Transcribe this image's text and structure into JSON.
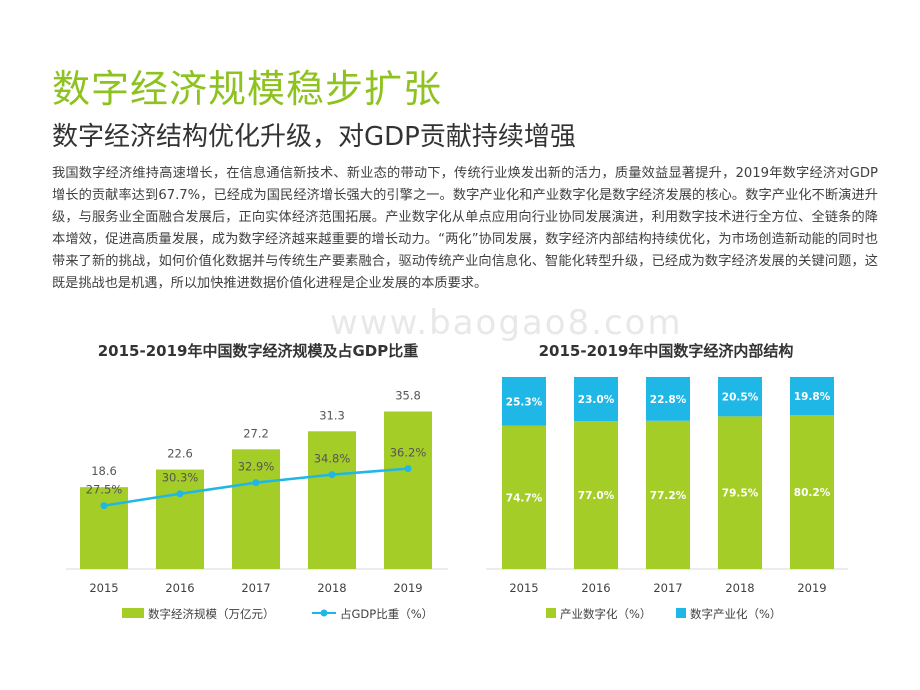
{
  "header": {
    "title": "数字经济规模稳步扩张",
    "subtitle": "数字经济结构优化升级，对GDP贡献持续增强"
  },
  "body_text": "我国数字经济维持高速增长，在信息通信新技术、新业态的带动下，传统行业焕发出新的活力，质量效益显著提升，2019年数字经济对GDP增长的贡献率达到67.7%，已经成为国民经济增长强大的引擎之一。数字产业化和产业数字化是数字经济发展的核心。数字产业化不断演进升级，与服务业全面融合发展后，正向实体经济范围拓展。产业数字化从单点应用向行业协同发展演进，利用数字技术进行全方位、全链条的降本增效，促进高质量发展，成为数字经济越来越重要的增长动力。“两化”协同发展，数字经济内部结构持续优化，为市场创造新动能的同时也带来了新的挑战，如何价值化数据并与传统生产要素融合，驱动传统产业向信息化、智能化转型升级，已经成为数字经济发展的关键问题，这既是挑战也是机遇，所以加快推进数据价值化进程是企业发展的本质要求。",
  "watermark": "www.baogao8.com",
  "colors": {
    "green": "#a5cd28",
    "blue": "#1fb7e6",
    "title_green": "#8dc21f"
  },
  "chart_data": [
    {
      "type": "bar",
      "title": "2015-2019年中国数字经济规模及占GDP比重",
      "categories": [
        "2015",
        "2016",
        "2017",
        "2018",
        "2019"
      ],
      "series": [
        {
          "name": "数字经济规模（万亿元）",
          "type": "bar",
          "values": [
            18.6,
            22.6,
            27.2,
            31.3,
            35.8
          ],
          "labels": [
            "18.6",
            "22.6",
            "27.2",
            "31.3",
            "35.8"
          ]
        },
        {
          "name": "占GDP比重（%）",
          "type": "line",
          "values": [
            27.5,
            30.3,
            32.9,
            34.8,
            36.2
          ],
          "labels": [
            "27.5%",
            "30.3%",
            "32.9%",
            "34.8%",
            "36.2%"
          ]
        }
      ],
      "ylim": [
        0,
        45
      ],
      "y2lim": [
        0,
        40
      ],
      "legend": "bottom"
    },
    {
      "type": "bar",
      "stacked": true,
      "title": "2015-2019年中国数字经济内部结构",
      "categories": [
        "2015",
        "2016",
        "2017",
        "2018",
        "2019"
      ],
      "series": [
        {
          "name": "产业数字化（%）",
          "values": [
            74.7,
            77.0,
            77.2,
            79.5,
            80.2
          ],
          "labels": [
            "74.7%",
            "77.0%",
            "77.2%",
            "79.5%",
            "80.2%"
          ]
        },
        {
          "name": "数字产业化（%）",
          "values": [
            25.3,
            23.0,
            22.8,
            20.5,
            19.8
          ],
          "labels": [
            "25.3%",
            "23.0%",
            "22.8%",
            "20.5%",
            "19.8%"
          ]
        }
      ],
      "ylim": [
        0,
        100
      ],
      "legend": "bottom"
    }
  ]
}
